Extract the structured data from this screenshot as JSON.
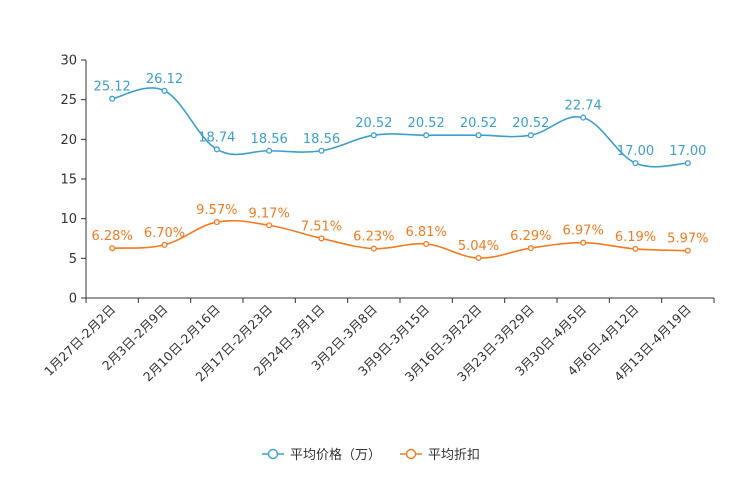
{
  "chart_data": {
    "type": "line",
    "title": "",
    "xlabel": "",
    "ylabel": "",
    "ylim": [
      0,
      30
    ],
    "yticks": [
      0,
      5,
      10,
      15,
      20,
      25,
      30
    ],
    "grid": false,
    "legend_position": "bottom-center",
    "categories": [
      "1月27日-2月2日",
      "2月3日-2月9日",
      "2月10日-2月16日",
      "2月17日-2月23日",
      "2月24日-3月1日",
      "3月2日-3月8日",
      "3月9日-3月15日",
      "3月16日-3月22日",
      "3月23日-3月29日",
      "3月30日-4月5日",
      "4月6日-4月12日",
      "4月13日-4月19日"
    ],
    "series": [
      {
        "name": "平均价格（万）",
        "color": "#3c9fd1",
        "values": [
          25.12,
          26.12,
          18.74,
          18.56,
          18.56,
          20.52,
          20.52,
          20.52,
          20.52,
          22.74,
          17.0,
          17.0
        ],
        "labels": [
          "25.12",
          "26.12",
          "18.74",
          "18.56",
          "18.56",
          "20.52",
          "20.52",
          "20.52",
          "20.52",
          "22.74",
          "17.00",
          "17.00"
        ]
      },
      {
        "name": "平均折扣",
        "color": "#f47b20",
        "values": [
          6.28,
          6.7,
          9.57,
          9.17,
          7.51,
          6.23,
          6.81,
          5.04,
          6.29,
          6.97,
          6.19,
          5.97
        ],
        "labels": [
          "6.28%",
          "6.70%",
          "9.57%",
          "9.17%",
          "7.51%",
          "6.23%",
          "6.81%",
          "5.04%",
          "6.29%",
          "6.97%",
          "6.19%",
          "5.97%"
        ]
      }
    ]
  }
}
